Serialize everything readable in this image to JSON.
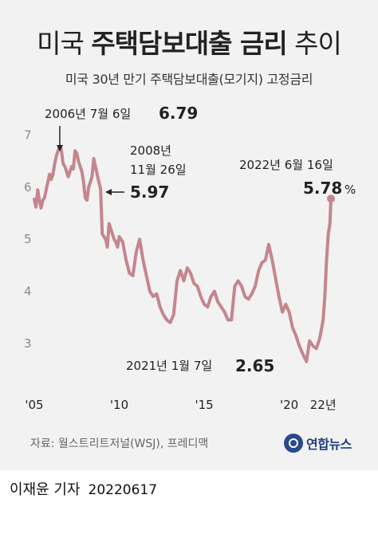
{
  "title": {
    "part1": "미국 ",
    "part2": "주택담보대출 금리",
    "part3": " 추이"
  },
  "subtitle": "미국 30년 만기 주택담보대출(모기지) 고정금리",
  "source": "자료: 월스트리트저널(WSJ), 프레디맥",
  "logo": "연합뉴스",
  "credit": {
    "author": "이재윤 기자",
    "date": "20220617"
  },
  "colors": {
    "line": "#c4868e",
    "background": "#f2f2f2",
    "text": "#222222"
  },
  "chart_data": {
    "type": "line",
    "title": "미국 30년 만기 주택담보대출(모기지) 고정금리",
    "xlim": [
      2005,
      2022.6
    ],
    "ylim": [
      2.4,
      7.3
    ],
    "yticks": [
      3,
      4,
      5,
      6,
      7
    ],
    "xticks": [
      {
        "value": 2005,
        "label": "'05"
      },
      {
        "value": 2010,
        "label": "'10"
      },
      {
        "value": 2015,
        "label": "'15"
      },
      {
        "value": 2020,
        "label": "'20"
      },
      {
        "value": 2022,
        "label": "22년"
      }
    ],
    "grid": false,
    "series": [
      {
        "x": [
          2005.0,
          2005.1,
          2005.2,
          2005.3,
          2005.4,
          2005.5,
          2005.6,
          2005.7,
          2005.8,
          2005.9,
          2006.0,
          2006.1,
          2006.2,
          2006.3,
          2006.4,
          2006.52,
          2006.6,
          2006.7,
          2006.8,
          2006.9,
          2007.0,
          2007.1,
          2007.2,
          2007.3,
          2007.4,
          2007.5,
          2007.6,
          2007.7,
          2007.8,
          2007.9,
          2008.0,
          2008.1,
          2008.2,
          2008.3,
          2008.4,
          2008.5,
          2008.6,
          2008.7,
          2008.8,
          2008.9,
          2009.0,
          2009.1,
          2009.2,
          2009.3,
          2009.4,
          2009.5,
          2009.6,
          2009.7,
          2009.8,
          2009.9,
          2010.0,
          2010.2,
          2010.4,
          2010.6,
          2010.8,
          2011.0,
          2011.2,
          2011.4,
          2011.6,
          2011.8,
          2012.0,
          2012.2,
          2012.4,
          2012.6,
          2012.8,
          2013.0,
          2013.2,
          2013.4,
          2013.6,
          2013.8,
          2014.0,
          2014.2,
          2014.4,
          2014.6,
          2014.8,
          2015.0,
          2015.2,
          2015.4,
          2015.6,
          2015.8,
          2016.0,
          2016.2,
          2016.4,
          2016.6,
          2016.8,
          2017.0,
          2017.2,
          2017.4,
          2017.6,
          2017.8,
          2018.0,
          2018.2,
          2018.4,
          2018.6,
          2018.8,
          2019.0,
          2019.2,
          2019.4,
          2019.6,
          2019.8,
          2020.0,
          2020.2,
          2020.4,
          2020.6,
          2020.8,
          2021.02,
          2021.2,
          2021.4,
          2021.6,
          2021.8,
          2022.0,
          2022.1,
          2022.2,
          2022.3,
          2022.4,
          2022.46
        ],
        "y": [
          5.77,
          5.62,
          5.95,
          5.75,
          5.6,
          5.75,
          5.8,
          5.95,
          6.1,
          6.25,
          6.15,
          6.25,
          6.45,
          6.6,
          6.7,
          6.79,
          6.7,
          6.45,
          6.4,
          6.3,
          6.2,
          6.3,
          6.4,
          6.35,
          6.7,
          6.65,
          6.5,
          6.4,
          6.3,
          6.1,
          5.8,
          5.75,
          6.0,
          6.1,
          6.2,
          6.55,
          6.4,
          6.25,
          6.1,
          5.97,
          5.1,
          5.05,
          5.0,
          4.85,
          5.3,
          5.2,
          5.1,
          5.0,
          4.95,
          4.85,
          5.05,
          4.95,
          4.6,
          4.35,
          4.3,
          4.75,
          5.0,
          4.6,
          4.3,
          4.0,
          3.9,
          3.95,
          3.7,
          3.55,
          3.45,
          3.4,
          3.55,
          4.2,
          4.4,
          4.2,
          4.45,
          4.35,
          4.15,
          4.1,
          3.9,
          3.75,
          3.7,
          3.9,
          4.0,
          3.8,
          3.7,
          3.6,
          3.45,
          3.45,
          4.1,
          4.2,
          4.1,
          3.9,
          3.85,
          3.95,
          4.1,
          4.4,
          4.55,
          4.6,
          4.9,
          4.6,
          4.25,
          3.9,
          3.6,
          3.75,
          3.6,
          3.3,
          3.15,
          2.95,
          2.8,
          2.65,
          3.05,
          2.95,
          2.9,
          3.1,
          3.45,
          3.9,
          4.6,
          5.1,
          5.3,
          5.78
        ]
      }
    ],
    "annotations": [
      {
        "label": "2006년 7월 6일",
        "value": "6.79"
      },
      {
        "label_line1": "2008년",
        "label_line2": "11월 26일",
        "value": "5.97"
      },
      {
        "label": "2022년 6월 16일",
        "value": "5.78",
        "unit": "%"
      },
      {
        "label": "2021년 1월 7일",
        "value": "2.65"
      }
    ]
  }
}
